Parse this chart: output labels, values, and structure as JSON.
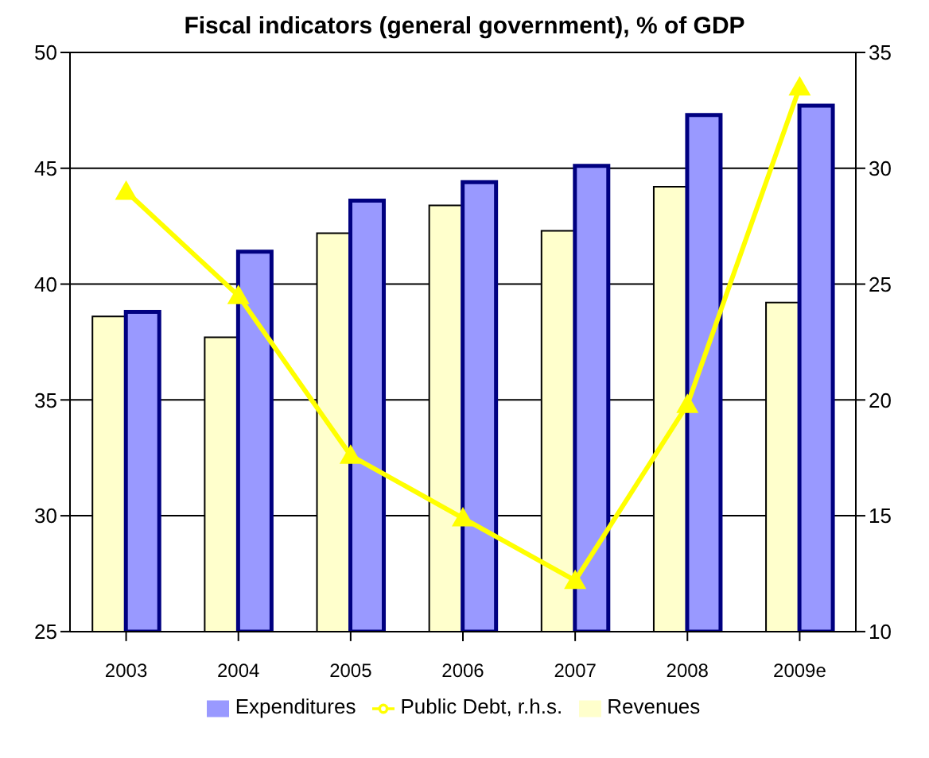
{
  "chart_data": {
    "type": "bar",
    "title": "Fiscal indicators (general government), % of GDP",
    "categories": [
      "2003",
      "2004",
      "2005",
      "2006",
      "2007",
      "2008",
      "2009e"
    ],
    "series": [
      {
        "name": "Revenues",
        "color": "#ffffcc",
        "values": [
          38.6,
          37.7,
          42.2,
          43.4,
          42.3,
          44.2,
          39.2
        ]
      },
      {
        "name": "Expenditures",
        "color": "#9999ff",
        "values": [
          38.8,
          41.4,
          43.6,
          44.4,
          45.1,
          47.3,
          47.7
        ]
      },
      {
        "name": "Public Debt, r.h.s.",
        "type": "line",
        "axis": "y2",
        "color": "#ffff00",
        "marker": "triangle",
        "values": [
          29,
          24.5,
          17.6,
          14.9,
          12.2,
          19.8,
          33.5
        ]
      }
    ],
    "ylim": [
      25,
      50
    ],
    "yticks": [
      25,
      30,
      35,
      40,
      45,
      50
    ],
    "y2lim": [
      10,
      35
    ],
    "y2ticks": [
      10,
      15,
      20,
      25,
      30,
      35
    ],
    "grid": "y",
    "legend": "bottom"
  }
}
